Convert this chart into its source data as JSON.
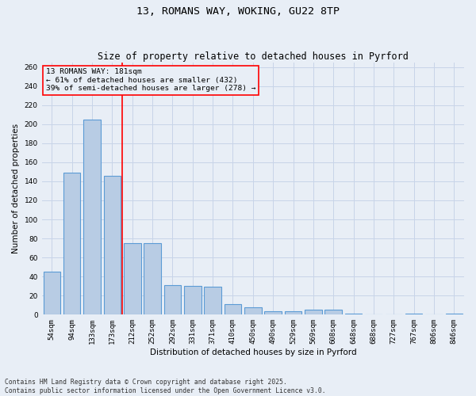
{
  "title1": "13, ROMANS WAY, WOKING, GU22 8TP",
  "title2": "Size of property relative to detached houses in Pyrford",
  "xlabel": "Distribution of detached houses by size in Pyrford",
  "ylabel": "Number of detached properties",
  "categories": [
    "54sqm",
    "94sqm",
    "133sqm",
    "173sqm",
    "212sqm",
    "252sqm",
    "292sqm",
    "331sqm",
    "371sqm",
    "410sqm",
    "450sqm",
    "490sqm",
    "529sqm",
    "569sqm",
    "608sqm",
    "648sqm",
    "688sqm",
    "727sqm",
    "767sqm",
    "806sqm",
    "846sqm"
  ],
  "values": [
    45,
    149,
    205,
    146,
    75,
    75,
    31,
    30,
    29,
    11,
    8,
    4,
    4,
    5,
    5,
    1,
    0,
    0,
    1,
    0,
    1
  ],
  "bar_color": "#b8cce4",
  "bar_edge_color": "#5b9bd5",
  "bar_linewidth": 0.8,
  "grid_color": "#c8d4e8",
  "background_color": "#e8eef6",
  "vline_x_index": 3,
  "vline_color": "red",
  "vline_linewidth": 1.2,
  "annotation_text": "13 ROMANS WAY: 181sqm\n← 61% of detached houses are smaller (432)\n39% of semi-detached houses are larger (278) →",
  "box_color": "red",
  "ylim": [
    0,
    265
  ],
  "yticks": [
    0,
    20,
    40,
    60,
    80,
    100,
    120,
    140,
    160,
    180,
    200,
    220,
    240,
    260
  ],
  "footnote": "Contains HM Land Registry data © Crown copyright and database right 2025.\nContains public sector information licensed under the Open Government Licence v3.0.",
  "title_fontsize": 9.5,
  "subtitle_fontsize": 8.5,
  "axis_label_fontsize": 7.5,
  "tick_fontsize": 6.5,
  "annotation_fontsize": 6.8,
  "footnote_fontsize": 5.8
}
